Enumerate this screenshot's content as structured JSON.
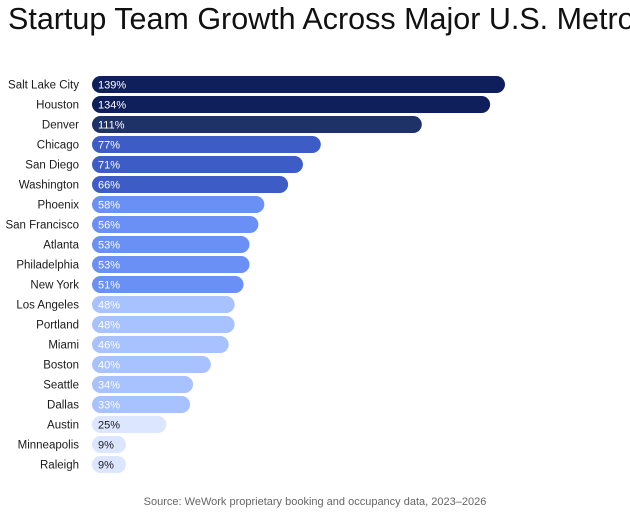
{
  "title": "Startup Team Growth Across Major U.S. Metros",
  "source": "Source: WeWork proprietary booking and occupancy data, 2023–2026",
  "chart_data": {
    "type": "bar",
    "orientation": "horizontal",
    "categories": [
      "Salt Lake City",
      "Houston",
      "Denver",
      "Chicago",
      "San Diego",
      "Washington",
      "Phoenix",
      "San Francisco",
      "Atlanta",
      "Philadelphia",
      "New York",
      "Los Angeles",
      "Portland",
      "Miami",
      "Boston",
      "Seattle",
      "Dallas",
      "Austin",
      "Minneapolis",
      "Raleigh"
    ],
    "values": [
      139,
      134,
      111,
      77,
      71,
      66,
      58,
      56,
      53,
      53,
      51,
      48,
      48,
      46,
      40,
      34,
      33,
      25,
      9,
      9
    ],
    "labels": [
      "139%",
      "134%",
      "111%",
      "77%",
      "71%",
      "66%",
      "58%",
      "56%",
      "53%",
      "53%",
      "51%",
      "48%",
      "48%",
      "46%",
      "40%",
      "34%",
      "33%",
      "25%",
      "9%",
      "9%"
    ],
    "unit": "%",
    "colors": [
      "#0e1f5c",
      "#0e1f5c",
      "#1e3268",
      "#3d5cc6",
      "#3d5cc6",
      "#3d5cc6",
      "#6a8ff5",
      "#6a8ff5",
      "#6a8ff5",
      "#6a8ff5",
      "#6a8ff5",
      "#a8c1ff",
      "#a8c1ff",
      "#a8c1ff",
      "#a8c1ff",
      "#a8c1ff",
      "#a8c1ff",
      "#dce6ff",
      "#dce6ff",
      "#dce6ff"
    ],
    "label_colors": [
      "#ffffff",
      "#ffffff",
      "#ffffff",
      "#ffffff",
      "#ffffff",
      "#ffffff",
      "#ffffff",
      "#ffffff",
      "#ffffff",
      "#ffffff",
      "#ffffff",
      "#ffffff",
      "#ffffff",
      "#ffffff",
      "#ffffff",
      "#ffffff",
      "#ffffff",
      "#1a1a1a",
      "#1a1a1a",
      "#1a1a1a"
    ],
    "xlim": [
      0,
      139
    ],
    "grid": false,
    "legend": "none"
  }
}
